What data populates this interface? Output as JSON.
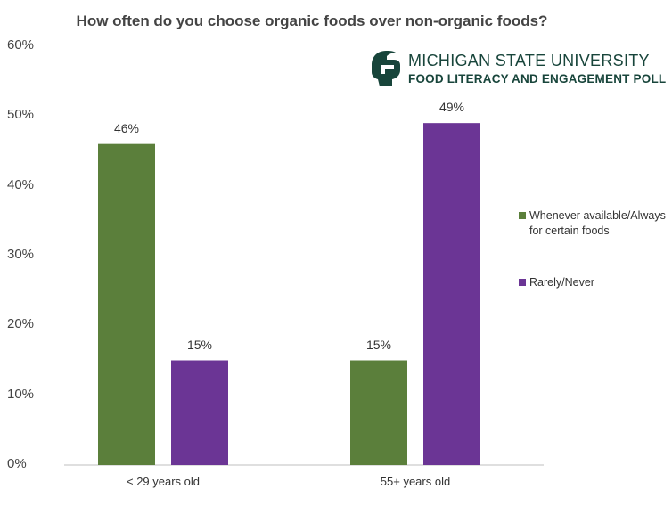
{
  "chart_data": {
    "type": "bar",
    "title": "How often do you choose organic foods over non-organic foods?",
    "categories": [
      "< 29 years old",
      "55+ years old"
    ],
    "series": [
      {
        "name": "Whenever available/Always for certain foods",
        "values": [
          46,
          15
        ],
        "color": "#5b7f3b"
      },
      {
        "name": "Rarely/Never",
        "values": [
          15,
          49
        ],
        "color": "#6b3595"
      }
    ],
    "data_labels": [
      [
        "46%",
        "15%"
      ],
      [
        "15%",
        "49%"
      ]
    ],
    "ylim": [
      0,
      60
    ],
    "yticks": [
      "0%",
      "10%",
      "20%",
      "30%",
      "40%",
      "50%",
      "60%"
    ],
    "xlabel": "",
    "ylabel": "",
    "legend_position": "right"
  },
  "logo": {
    "line1": "MICHIGAN STATE UNIVERSITY",
    "line2": "FOOD LITERACY AND ENGAGEMENT POLL",
    "icon": "spartan-helmet-icon",
    "color": "#18453b"
  }
}
